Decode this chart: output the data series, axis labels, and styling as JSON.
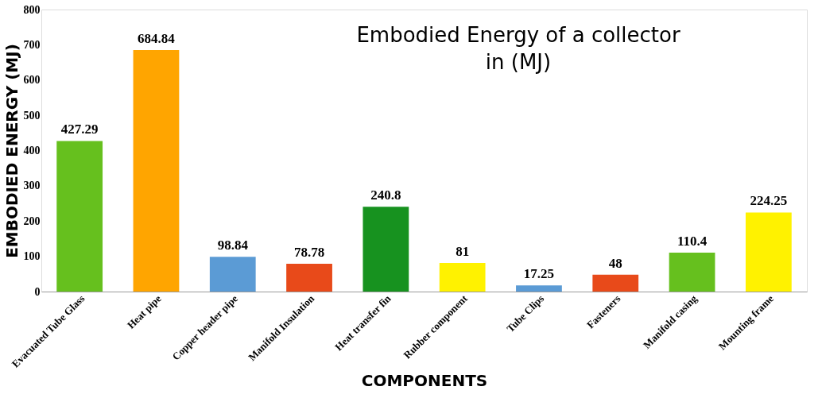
{
  "chart_data": {
    "type": "bar",
    "title": "Embodied Energy of a collector\nin (MJ)",
    "xlabel": "COMPONENTS",
    "ylabel": "EMBODIED ENERGY (MJ)",
    "categories": [
      "Evacuated Tube Glass",
      "Heat pipe",
      "Copper header pipe",
      "Manifold Insulation",
      "Heat transfer fin",
      "Rubber component",
      "Tube Clips",
      "Fasteners",
      "Manifold casing",
      "Mounting frame"
    ],
    "values": [
      427.29,
      684.84,
      98.84,
      78.78,
      240.8,
      81,
      17.25,
      48,
      110.4,
      224.25
    ],
    "colors": [
      "#66c01e",
      "#ffa500",
      "#5b9bd5",
      "#e84a1a",
      "#17921f",
      "#fff200",
      "#5b9bd5",
      "#e84a1a",
      "#66c01e",
      "#fff200"
    ],
    "ylim": [
      0,
      800
    ],
    "yticks": [
      0,
      100,
      200,
      300,
      400,
      500,
      600,
      700,
      800
    ],
    "data_labels": true,
    "grid": false
  }
}
